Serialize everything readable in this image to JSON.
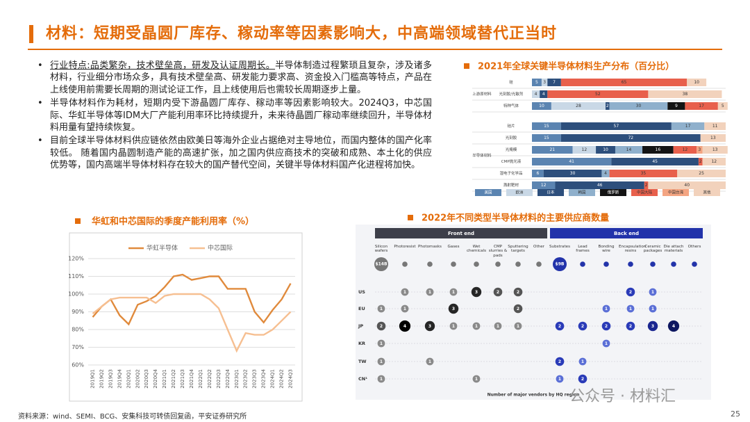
{
  "header": {
    "title": "材料：短期受晶圆厂库存、稼动率等因素影响大，中高端领域替代正当时"
  },
  "bullets": [
    {
      "lead": "行业特点:品类繁杂，技术壁垒高，研发及认证周期长。",
      "text": "半导体制造过程繁琐且复杂，涉及诸多材料，行业细分市场众多，具有技术壁垒高、研发能力要求高、资金投入门槛高等特点，产品在上线使用前需要长周期的测试论证工作，且上线使用后也需较长周期逐步上量。"
    },
    {
      "text": "半导体材料作为耗材，短期内受下游晶圆厂库存、稼动率等因素影响较大。2024Q3，中芯国际、华虹半导体等IDM大厂产能利用率环比持续提升，未来待晶圆厂稼动率继续回升，半导体材料用量有望持续恢复。"
    },
    {
      "text": "目前全球半导体材料供应链依然由欧美日等海外企业占据绝对主导地位，而国内整体的国产化率较低。 随着国内晶圆制造产能的高速扩张，加之国内供应商技术的突破和成熟、本土化的供应优势等，国内高端半导体材料存在较大的国产替代空间，关键半导体材料国产化进程将加快。"
    }
  ],
  "chart_data": [
    {
      "type": "bar",
      "orientation": "horizontal",
      "stacked": true,
      "title": "2021年全球关键半导体材料生产分布（百分比）",
      "groups": [
        {
          "name": "上游原材料",
          "categories": [
            "硅",
            "光刻胶/光敏剂",
            "特种气体"
          ]
        },
        {
          "name": "半导体材料",
          "categories": [
            "硅片",
            "光刻胶",
            "光掩模",
            "CMP抛光液",
            "湿电子化学品",
            "溅射靶材"
          ]
        }
      ],
      "xlim": [
        0,
        100
      ],
      "legend": "bottom",
      "series": [
        {
          "name": "美国",
          "color": "#5b84b1",
          "values": [
            5,
            null,
            10,
            15,
            15,
            21,
            41,
            6,
            12
          ]
        },
        {
          "name": "欧洲",
          "color": "#c9d8e6",
          "values": [
            3,
            4,
            28,
            null,
            null,
            12,
            null,
            null,
            null
          ]
        },
        {
          "name": "日本",
          "color": "#2d4f7c",
          "values": [
            7,
            4,
            2,
            57,
            72,
            10,
            45,
            30,
            46
          ]
        },
        {
          "name": "韩国",
          "color": "#8fb0cc",
          "values": [
            null,
            null,
            30,
            17,
            null,
            14,
            null,
            4,
            null
          ]
        },
        {
          "name": "俄罗斯",
          "color": "#141414",
          "values": [
            null,
            null,
            9,
            null,
            null,
            16,
            null,
            null,
            null
          ]
        },
        {
          "name": "中国大陆",
          "color": "#e8604c",
          "values": [
            65,
            52,
            17,
            null,
            null,
            12,
            2,
            35,
            2
          ]
        },
        {
          "name": "中国台湾",
          "color": "#f4a582",
          "values": [
            null,
            null,
            null,
            null,
            null,
            3,
            null,
            null,
            null
          ]
        },
        {
          "name": "其他",
          "color": "#f2d2bc",
          "values": [
            10,
            38,
            5,
            11,
            13,
            13,
            12,
            25,
            40
          ]
        }
      ]
    },
    {
      "type": "line",
      "title": "华虹和中芯国际的季度产能利用率（%）",
      "categories": [
        "2019Q1",
        "2019Q2",
        "2019Q3",
        "2019Q4",
        "2020Q1",
        "2020Q2",
        "2020Q3",
        "2020Q4",
        "2021Q1",
        "2021Q2",
        "2021Q3",
        "2021Q4",
        "2022Q1",
        "2022Q2",
        "2022Q3",
        "2022Q4",
        "2023Q1",
        "2023Q2",
        "2023Q3",
        "2023Q4",
        "2024Q1",
        "2024Q2",
        "2024Q3"
      ],
      "ylim": [
        60,
        120
      ],
      "yticks": [
        {
          "value": 60,
          "label": "60%"
        },
        {
          "value": 70,
          "label": "70%"
        },
        {
          "value": 80,
          "label": "80%"
        },
        {
          "value": 90,
          "label": "90%"
        },
        {
          "value": 100,
          "label": "100%"
        },
        {
          "value": 110,
          "label": "110%"
        },
        {
          "value": 120,
          "label": "120%"
        }
      ],
      "grid": true,
      "legend": "top",
      "series": [
        {
          "name": "华虹半导体",
          "color": "#e08a3c",
          "values": [
            87,
            93,
            97,
            88,
            83,
            94,
            96,
            99,
            104,
            110,
            111,
            108,
            109,
            110,
            110,
            103,
            103,
            103,
            90,
            84,
            91,
            97,
            106
          ]
        },
        {
          "name": "中芯国际",
          "color": "#f6bf91",
          "values": [
            89,
            93,
            97,
            98,
            98,
            98,
            98,
            95,
            99,
            100,
            100,
            100,
            100,
            97,
            92,
            80,
            68,
            78,
            77,
            77,
            80,
            85,
            90
          ]
        }
      ]
    }
  ],
  "vendor_matrix": {
    "title": "2022年不同类型半导体材料的主要供应商数量",
    "front_end": {
      "name": "Front end",
      "columns": [
        {
          "name": "Silicon wafers",
          "market": "$14B"
        },
        {
          "name": "Photoresist"
        },
        {
          "name": "Photomasks"
        },
        {
          "name": "Gases"
        },
        {
          "name": "Wet chemicals"
        },
        {
          "name": "CMP slurries & pads"
        },
        {
          "name": "Sputtering targets"
        },
        {
          "name": "Other"
        }
      ]
    },
    "back_end": {
      "name": "Back end",
      "columns": [
        {
          "name": "Substrates",
          "market": "$9B"
        },
        {
          "name": "Lead frames"
        },
        {
          "name": "Bonding wire"
        },
        {
          "name": "Encapsulation resins"
        },
        {
          "name": "Ceramic packages"
        },
        {
          "name": "Die attach materials"
        },
        {
          "name": "Others"
        }
      ]
    },
    "rows": [
      {
        "region": "US",
        "front": [
          null,
          1,
          1,
          1,
          3,
          2,
          2,
          null
        ],
        "back": [
          null,
          null,
          null,
          2,
          1,
          null,
          null
        ]
      },
      {
        "region": "EU",
        "front": [
          1,
          1,
          null,
          3,
          null,
          null,
          2,
          null
        ],
        "back": [
          null,
          null,
          1,
          1,
          1,
          null,
          null
        ]
      },
      {
        "region": "JP",
        "front": [
          2,
          4,
          3,
          1,
          1,
          1,
          1,
          null
        ],
        "back": [
          2,
          2,
          2,
          2,
          3,
          4,
          null
        ]
      },
      {
        "region": "KR",
        "front": [
          1,
          null,
          null,
          null,
          null,
          null,
          null,
          null
        ],
        "back": [
          null,
          null,
          1,
          null,
          null,
          null,
          null
        ]
      },
      {
        "region": "TW",
        "front": [
          1,
          null,
          1,
          null,
          null,
          null,
          null,
          null
        ],
        "back": [
          2,
          1,
          null,
          null,
          null,
          null,
          null
        ]
      },
      {
        "region": "CN¹",
        "front": [
          1,
          null,
          null,
          null,
          1,
          null,
          null,
          null
        ],
        "back": [
          1,
          2,
          null,
          null,
          null,
          null,
          null
        ]
      }
    ],
    "x_label": "Number of major vendors by HQ region"
  },
  "footer": {
    "source": "资料来源：wind、SEMI、BCG、安集科技可转债回复函，平安证券研究所",
    "page": "25",
    "watermark": "公众号 · 材料汇"
  }
}
